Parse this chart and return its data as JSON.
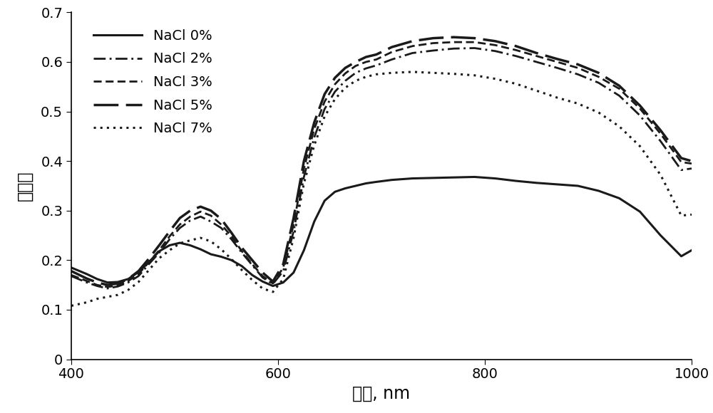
{
  "title": "",
  "xlabel": "波长, nm",
  "ylabel": "反射率",
  "xlim": [
    400,
    1000
  ],
  "ylim": [
    0,
    0.7
  ],
  "yticks": [
    0,
    0.1,
    0.2,
    0.3,
    0.4,
    0.5,
    0.6,
    0.7
  ],
  "xticks": [
    400,
    600,
    800,
    1000
  ],
  "xlabel_fontsize": 17,
  "ylabel_fontsize": 17,
  "legend_fontsize": 14,
  "tick_fontsize": 14,
  "background_color": "#ffffff",
  "line_color": "#1a1a1a",
  "series": [
    {
      "label": "NaCl 0%",
      "linestyle": "solid",
      "linewidth": 2.2,
      "data_x": [
        400,
        415,
        425,
        435,
        445,
        455,
        465,
        475,
        485,
        495,
        505,
        515,
        525,
        535,
        545,
        555,
        565,
        575,
        585,
        595,
        605,
        615,
        625,
        635,
        645,
        655,
        665,
        675,
        685,
        695,
        710,
        730,
        750,
        770,
        790,
        810,
        830,
        850,
        870,
        890,
        910,
        930,
        950,
        970,
        990,
        1000
      ],
      "data_y": [
        0.185,
        0.172,
        0.162,
        0.155,
        0.156,
        0.162,
        0.176,
        0.196,
        0.218,
        0.23,
        0.235,
        0.23,
        0.222,
        0.212,
        0.207,
        0.2,
        0.188,
        0.17,
        0.157,
        0.148,
        0.155,
        0.175,
        0.22,
        0.278,
        0.32,
        0.338,
        0.345,
        0.35,
        0.355,
        0.358,
        0.362,
        0.365,
        0.366,
        0.367,
        0.368,
        0.365,
        0.36,
        0.356,
        0.353,
        0.35,
        0.34,
        0.325,
        0.298,
        0.25,
        0.208,
        0.22
      ]
    },
    {
      "label": "NaCl 2%",
      "linestyle": "dashdot",
      "linewidth": 2.0,
      "data_x": [
        400,
        415,
        425,
        435,
        445,
        455,
        465,
        475,
        485,
        495,
        505,
        515,
        525,
        535,
        545,
        555,
        565,
        575,
        585,
        595,
        605,
        615,
        625,
        635,
        645,
        655,
        665,
        675,
        685,
        695,
        710,
        730,
        750,
        770,
        790,
        810,
        830,
        850,
        870,
        890,
        910,
        930,
        950,
        970,
        990,
        1000
      ],
      "data_y": [
        0.168,
        0.155,
        0.148,
        0.143,
        0.147,
        0.155,
        0.168,
        0.192,
        0.215,
        0.242,
        0.265,
        0.28,
        0.288,
        0.278,
        0.265,
        0.242,
        0.215,
        0.19,
        0.165,
        0.152,
        0.178,
        0.258,
        0.368,
        0.448,
        0.505,
        0.54,
        0.562,
        0.578,
        0.587,
        0.593,
        0.605,
        0.618,
        0.623,
        0.627,
        0.628,
        0.622,
        0.612,
        0.6,
        0.588,
        0.575,
        0.558,
        0.532,
        0.492,
        0.44,
        0.382,
        0.385
      ]
    },
    {
      "label": "NaCl 3%",
      "linestyle": "short_dash",
      "linewidth": 2.0,
      "data_x": [
        400,
        415,
        425,
        435,
        445,
        455,
        465,
        475,
        485,
        495,
        505,
        515,
        525,
        535,
        545,
        555,
        565,
        575,
        585,
        595,
        605,
        615,
        625,
        635,
        645,
        655,
        665,
        675,
        685,
        695,
        710,
        730,
        750,
        770,
        790,
        810,
        830,
        850,
        870,
        890,
        910,
        930,
        950,
        970,
        990,
        1000
      ],
      "data_y": [
        0.17,
        0.158,
        0.15,
        0.146,
        0.149,
        0.158,
        0.172,
        0.196,
        0.22,
        0.248,
        0.272,
        0.288,
        0.298,
        0.29,
        0.272,
        0.248,
        0.218,
        0.192,
        0.168,
        0.153,
        0.185,
        0.272,
        0.385,
        0.465,
        0.52,
        0.555,
        0.577,
        0.592,
        0.6,
        0.605,
        0.62,
        0.632,
        0.638,
        0.64,
        0.64,
        0.634,
        0.624,
        0.612,
        0.6,
        0.588,
        0.57,
        0.546,
        0.506,
        0.455,
        0.398,
        0.395
      ]
    },
    {
      "label": "NaCl 5%",
      "linestyle": "long_dash",
      "linewidth": 2.5,
      "data_x": [
        400,
        415,
        425,
        435,
        445,
        455,
        465,
        475,
        485,
        495,
        505,
        515,
        525,
        535,
        545,
        555,
        565,
        575,
        585,
        595,
        605,
        615,
        625,
        635,
        645,
        655,
        665,
        675,
        685,
        695,
        710,
        730,
        750,
        770,
        790,
        810,
        830,
        850,
        870,
        890,
        910,
        930,
        950,
        970,
        990,
        1000
      ],
      "data_y": [
        0.178,
        0.163,
        0.155,
        0.15,
        0.153,
        0.162,
        0.178,
        0.203,
        0.23,
        0.258,
        0.285,
        0.3,
        0.308,
        0.3,
        0.283,
        0.255,
        0.225,
        0.2,
        0.175,
        0.157,
        0.192,
        0.285,
        0.4,
        0.478,
        0.535,
        0.568,
        0.588,
        0.6,
        0.61,
        0.615,
        0.63,
        0.642,
        0.648,
        0.65,
        0.648,
        0.642,
        0.632,
        0.618,
        0.606,
        0.595,
        0.578,
        0.552,
        0.512,
        0.462,
        0.406,
        0.4
      ]
    },
    {
      "label": "NaCl 7%",
      "linestyle": "dotted",
      "linewidth": 2.2,
      "data_x": [
        400,
        415,
        425,
        435,
        445,
        455,
        465,
        475,
        485,
        495,
        505,
        515,
        525,
        535,
        545,
        555,
        565,
        575,
        585,
        595,
        605,
        615,
        625,
        635,
        645,
        655,
        665,
        675,
        685,
        695,
        710,
        730,
        750,
        770,
        790,
        810,
        830,
        850,
        870,
        890,
        910,
        930,
        950,
        970,
        990,
        1000
      ],
      "data_y": [
        0.108,
        0.115,
        0.122,
        0.126,
        0.13,
        0.14,
        0.156,
        0.18,
        0.204,
        0.22,
        0.234,
        0.24,
        0.245,
        0.238,
        0.222,
        0.202,
        0.18,
        0.16,
        0.143,
        0.136,
        0.162,
        0.245,
        0.355,
        0.432,
        0.49,
        0.525,
        0.548,
        0.562,
        0.57,
        0.575,
        0.578,
        0.58,
        0.578,
        0.576,
        0.573,
        0.566,
        0.556,
        0.542,
        0.528,
        0.516,
        0.498,
        0.47,
        0.43,
        0.372,
        0.29,
        0.292
      ]
    }
  ]
}
